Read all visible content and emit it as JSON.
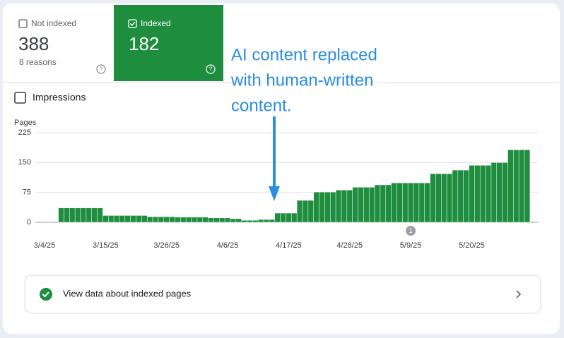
{
  "cards": [
    {
      "label": "Not indexed",
      "value": 388,
      "detail": "8 reasons"
    },
    {
      "label": "Indexed",
      "value": 182
    }
  ],
  "impressions_label": "Impressions",
  "link": "View data about indexed pages",
  "chart_data": {
    "type": "bar",
    "y_label": "Pages",
    "annotation": [
      "AI content replaced",
      "with human-written",
      "content."
    ],
    "marker": {
      "label": "1",
      "category": 66
    },
    "color": "#1e8e3e",
    "ylim": [
      0,
      225
    ],
    "yticks": [
      0,
      75,
      150,
      225
    ],
    "grid": true,
    "categories": [
      "3/4/25",
      null,
      null,
      null,
      null,
      null,
      null,
      null,
      null,
      null,
      null,
      "3/15/25",
      null,
      null,
      null,
      null,
      null,
      null,
      null,
      null,
      null,
      null,
      "3/26/25",
      null,
      null,
      null,
      null,
      null,
      null,
      null,
      null,
      null,
      null,
      "4/6/25",
      null,
      null,
      null,
      null,
      null,
      null,
      null,
      null,
      null,
      null,
      "4/17/25",
      null,
      null,
      null,
      null,
      null,
      null,
      null,
      null,
      null,
      null,
      "4/28/25",
      null,
      null,
      null,
      null,
      null,
      null,
      null,
      null,
      null,
      null,
      "5/9/25",
      null,
      null,
      null,
      null,
      null,
      null,
      null,
      null,
      null,
      null,
      "5/20/25",
      null,
      null,
      null,
      null,
      null,
      null,
      null,
      null,
      null,
      null
    ],
    "values": [
      null,
      null,
      null,
      36,
      36,
      36,
      36,
      36,
      36,
      36,
      36,
      17,
      17,
      17,
      17,
      17,
      17,
      17,
      17,
      14,
      14,
      14,
      14,
      14,
      13,
      13,
      13,
      13,
      13,
      13,
      11,
      11,
      11,
      11,
      9,
      9,
      5,
      5,
      5,
      7,
      7,
      7,
      23,
      23,
      23,
      23,
      55,
      55,
      55,
      76,
      76,
      76,
      76,
      81,
      81,
      81,
      88,
      88,
      88,
      88,
      94,
      94,
      94,
      99,
      99,
      99,
      99,
      99,
      99,
      99,
      122,
      122,
      122,
      122,
      131,
      131,
      131,
      143,
      143,
      143,
      143,
      150,
      150,
      150,
      182,
      182,
      182,
      182
    ]
  }
}
